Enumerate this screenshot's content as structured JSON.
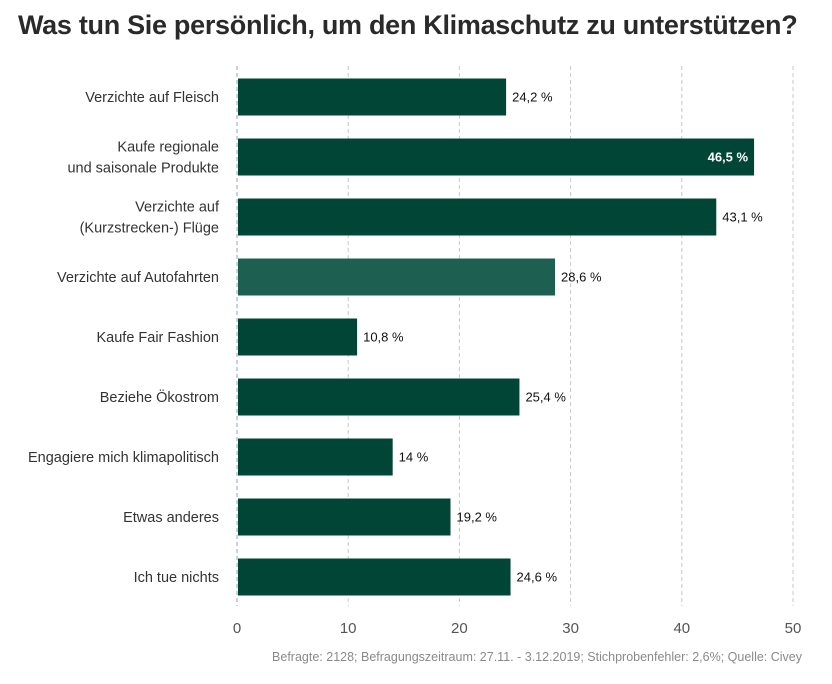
{
  "title": "Was tun Sie persönlich, um den Klimaschutz zu unterstützen?",
  "source": "Befragte: 2128; Befragungszeitraum: 27.11. - 3.12.2019; Stichprobenfehler: 2,6%; Quelle: Civey",
  "colors": {
    "bar": "#004536",
    "bar_highlight": "#1d6051",
    "value_label": "#111111",
    "value_label_inside": "#ffffff",
    "grid": "#c8c8c8",
    "axis_text": "#555555",
    "category_text": "#333333"
  },
  "chart_data": {
    "type": "bar",
    "orientation": "horizontal",
    "categories": [
      [
        "Verzichte auf Fleisch"
      ],
      [
        "Kaufe regionale",
        "und saisonale Produkte"
      ],
      [
        "Verzichte auf",
        "(Kurzstrecken-) Flüge"
      ],
      [
        "Verzichte auf Autofahrten"
      ],
      [
        "Kaufe Fair Fashion"
      ],
      [
        "Beziehe Ökostrom"
      ],
      [
        "Engagiere mich klimapolitisch"
      ],
      [
        "Etwas anderes"
      ],
      [
        "Ich tue nichts"
      ]
    ],
    "values": [
      24.2,
      46.5,
      43.1,
      28.6,
      10.8,
      25.4,
      14,
      19.2,
      24.6
    ],
    "value_labels": [
      "24,2 %",
      "46,5 %",
      "43,1 %",
      "28,6 %",
      "10,8 %",
      "25,4 %",
      "14 %",
      "19,2 %",
      "24,6 %"
    ],
    "highlighted_index": 3,
    "label_inside_index": 1,
    "xlim": [
      0,
      50
    ],
    "xticks": [
      0,
      10,
      20,
      30,
      40,
      50
    ],
    "xtick_labels": [
      "0",
      "10",
      "20",
      "30",
      "40",
      "50"
    ],
    "grid": "vertical-dashed",
    "xlabel": "",
    "ylabel": ""
  }
}
